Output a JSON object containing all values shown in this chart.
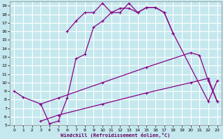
{
  "xlabel": "Windchill (Refroidissement éolien,°C)",
  "background_color": "#c5e8ee",
  "grid_color": "#ffffff",
  "line_color": "#880088",
  "xlim": [
    -0.5,
    23.5
  ],
  "ylim": [
    5,
    19.5
  ],
  "xticks": [
    0,
    1,
    2,
    3,
    4,
    5,
    6,
    7,
    8,
    9,
    10,
    11,
    12,
    13,
    14,
    15,
    16,
    17,
    18,
    19,
    20,
    21,
    22,
    23
  ],
  "yticks": [
    5,
    6,
    7,
    8,
    9,
    10,
    11,
    12,
    13,
    14,
    15,
    16,
    17,
    18,
    19
  ],
  "series": [
    {
      "x": [
        0,
        1,
        3,
        4,
        5,
        6,
        7,
        8,
        9,
        10,
        11,
        12,
        13,
        14,
        15,
        16,
        17,
        18,
        22,
        23
      ],
      "y": [
        9.0,
        8.3,
        7.5,
        5.2,
        5.5,
        8.2,
        12.8,
        13.3,
        16.5,
        17.2,
        18.2,
        18.2,
        19.3,
        18.2,
        18.8,
        18.8,
        18.2,
        15.8,
        7.8,
        10.2
      ]
    },
    {
      "x": [
        6,
        7,
        8,
        9,
        10,
        11,
        12,
        13,
        14,
        15,
        16,
        17,
        18
      ],
      "y": [
        16.0,
        17.2,
        18.2,
        18.2,
        19.3,
        18.2,
        18.7,
        18.7,
        18.2,
        18.8,
        18.8,
        18.2,
        15.8
      ]
    },
    {
      "comment": "upper diagonal - from (3,7.5) going to (20,13.5) then drops (21,13.2)(22,10.2)(23,7.8)",
      "x": [
        3,
        5,
        10,
        15,
        20,
        21,
        22,
        23
      ],
      "y": [
        7.5,
        8.2,
        10.0,
        11.8,
        13.5,
        13.2,
        10.2,
        7.8
      ]
    },
    {
      "x": [
        3,
        5,
        10,
        15,
        20,
        22,
        23
      ],
      "y": [
        5.5,
        6.2,
        7.5,
        8.8,
        10.0,
        10.5,
        7.8
      ]
    }
  ]
}
